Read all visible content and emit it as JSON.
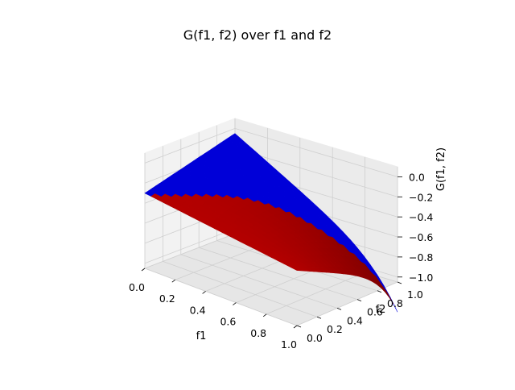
{
  "chart_data": {
    "type": "surface3d",
    "title": "G(f1, f2) over f1 and f2",
    "xlabel": "f1",
    "ylabel": "f2",
    "zlabel": "G(f1, f2)",
    "xlim": [
      0,
      1
    ],
    "ylim": [
      0,
      1
    ],
    "zlim": [
      -1.05,
      0.1
    ],
    "xticks": [
      "0.0",
      "0.2",
      "0.4",
      "0.6",
      "0.8",
      "1.0"
    ],
    "yticks": [
      "0.0",
      "0.2",
      "0.4",
      "0.6",
      "0.8",
      "1.0"
    ],
    "zticks": [
      "0.0",
      "−0.2",
      "−0.4",
      "−0.6",
      "−0.8",
      "−1.0"
    ],
    "xtick_values": [
      0,
      0.2,
      0.4,
      0.6,
      0.8,
      1.0
    ],
    "ytick_values": [
      0,
      0.2,
      0.4,
      0.6,
      0.8,
      1.0
    ],
    "ztick_values": [
      0,
      -0.2,
      -0.4,
      -0.6,
      -0.8,
      -1.0
    ],
    "surface_corner_values": [
      {
        "f1": 0,
        "f2": 0,
        "G": -0.3
      },
      {
        "f1": 1,
        "f2": 0,
        "G": -0.5
      },
      {
        "f1": 0,
        "f2": 1,
        "G": -0.05
      },
      {
        "f1": 1,
        "f2": 1,
        "G": -1.0
      }
    ],
    "regions": [
      {
        "condition": "f1 <= f2",
        "color": "#0000d8"
      },
      {
        "condition": "f1 > f2",
        "color": "#b40000"
      }
    ],
    "grid": true
  }
}
